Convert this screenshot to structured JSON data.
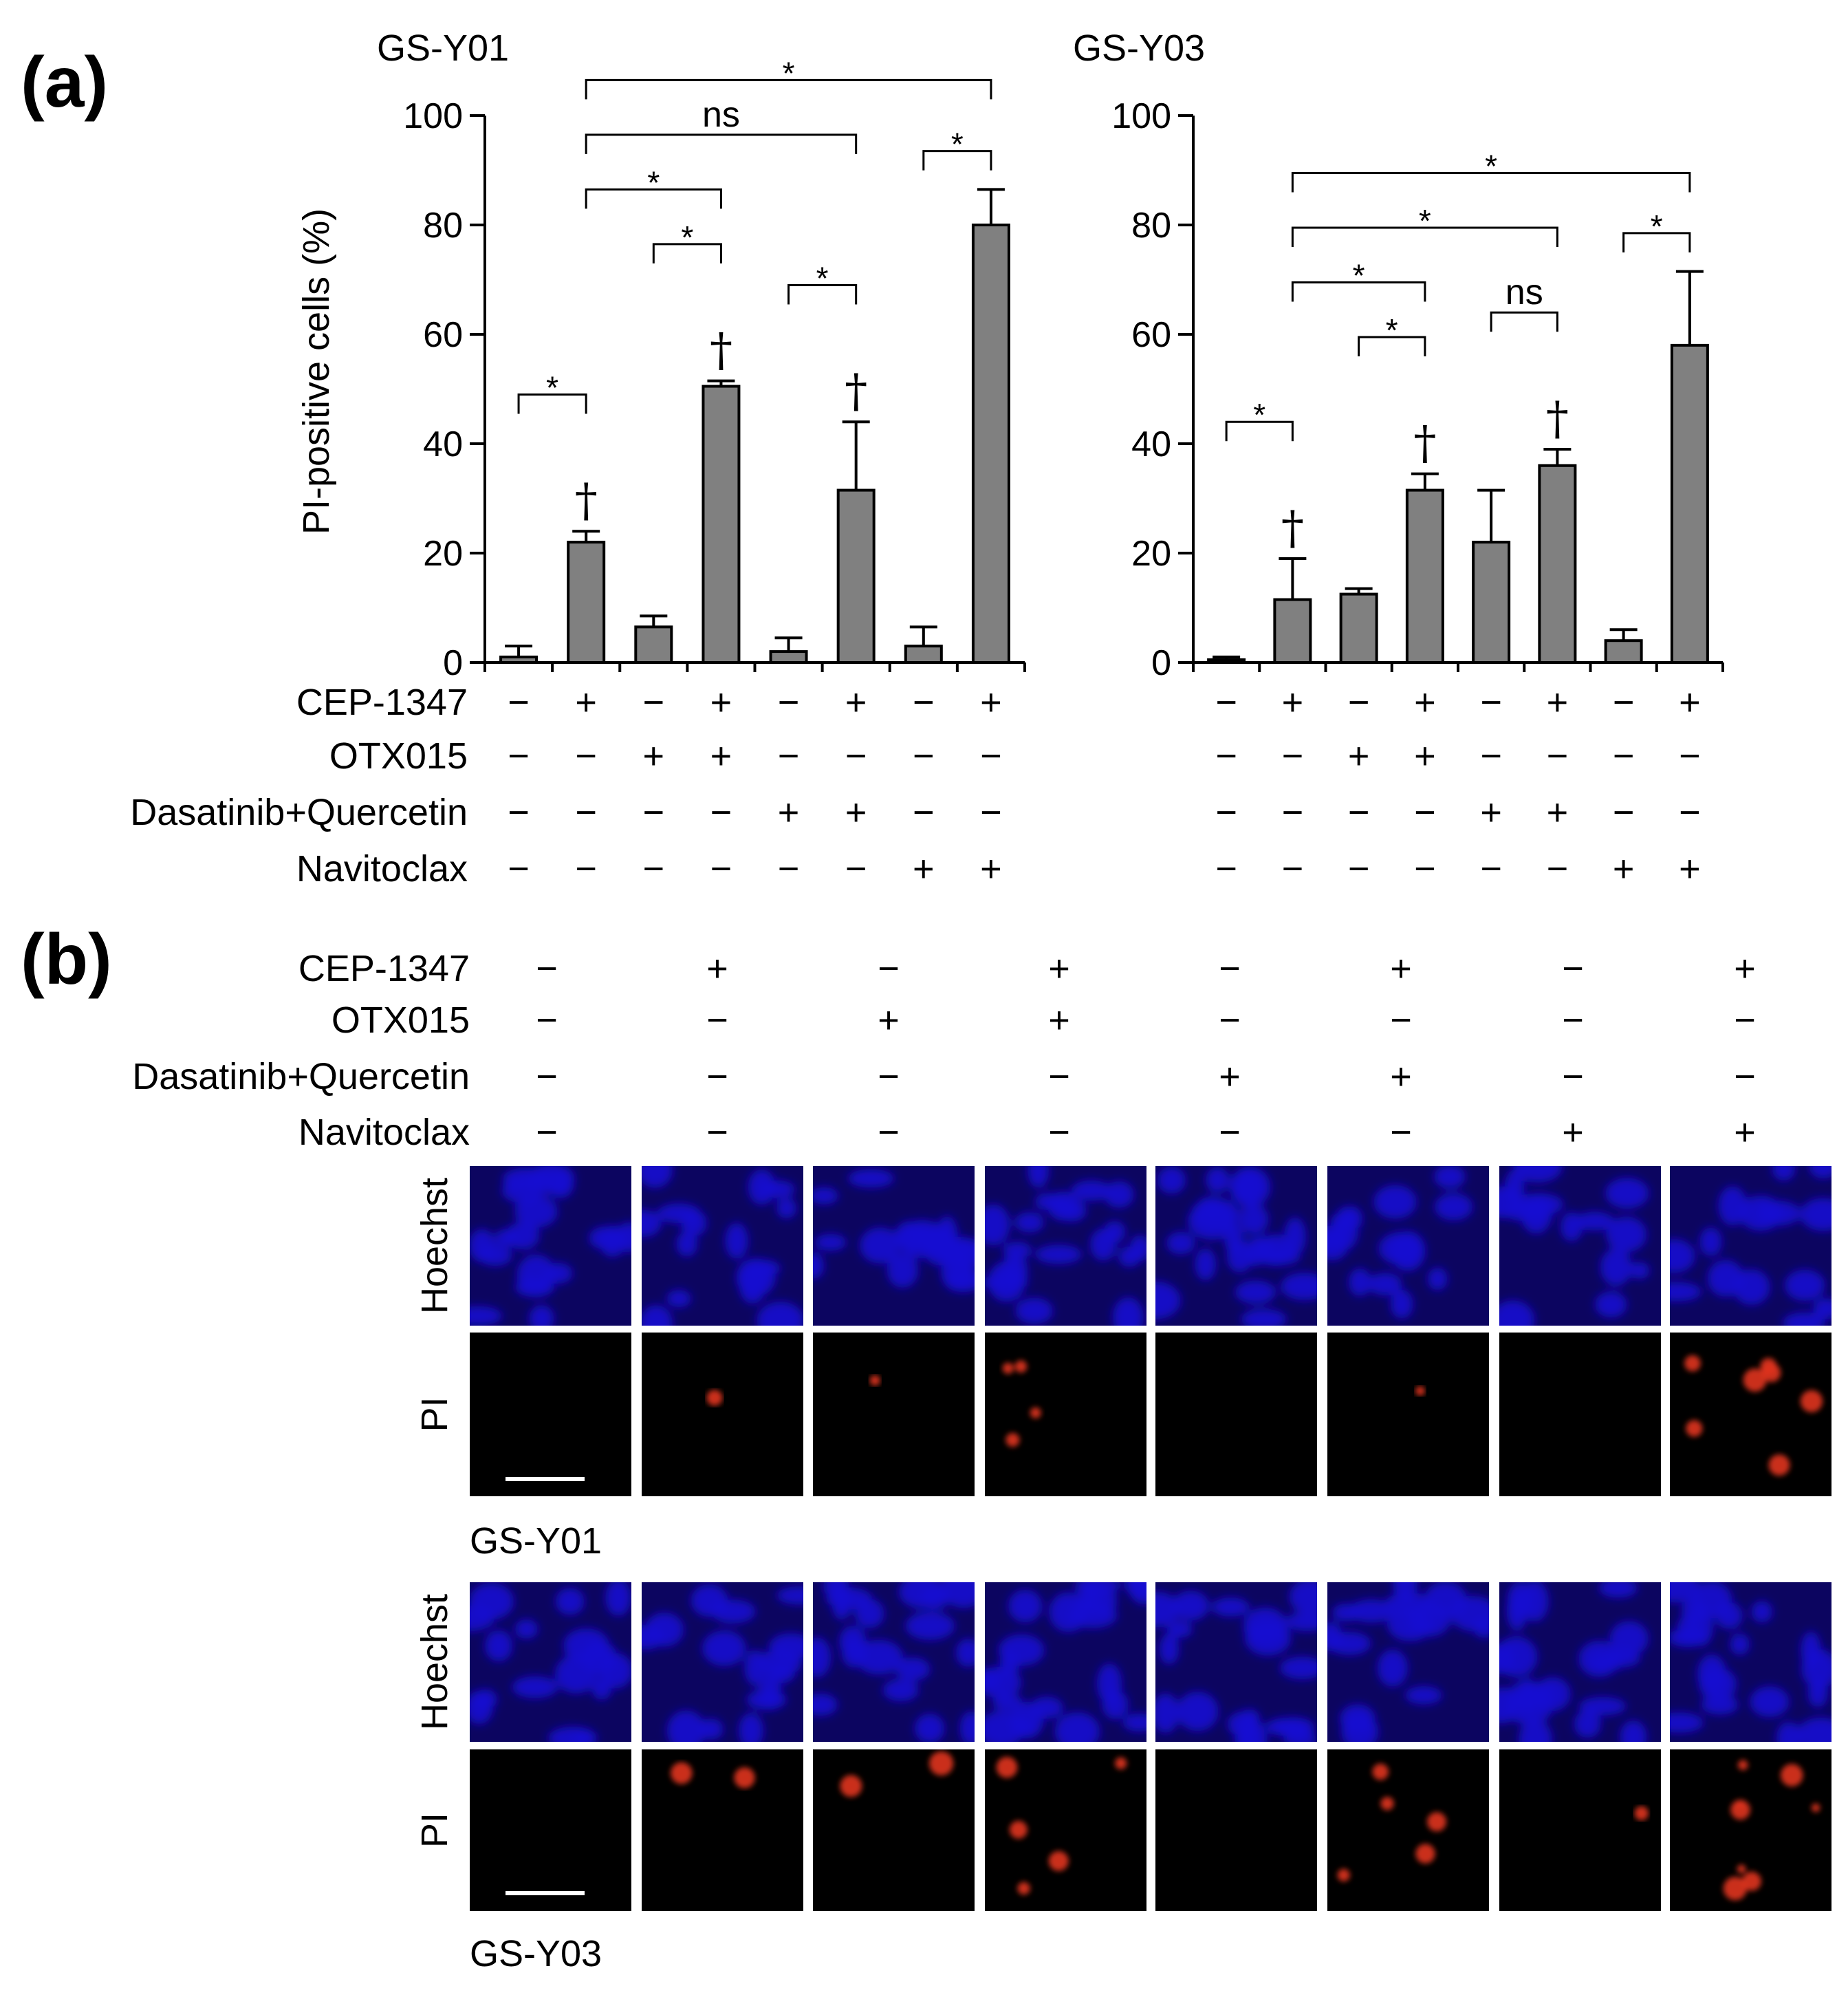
{
  "panel_a_label": "(a)",
  "panel_b_label": "(b)",
  "chart_data": [
    {
      "type": "bar",
      "title": "GS-Y01",
      "ylabel": "PI-positive  cells (%)",
      "ylim": [
        0,
        100
      ],
      "yticks": [
        "0",
        "20",
        "40",
        "60",
        "80",
        "100"
      ],
      "values": [
        1,
        22,
        6.5,
        50.5,
        2,
        31.5,
        3,
        80
      ],
      "errors": [
        2,
        2,
        2,
        1,
        2.5,
        12.5,
        3.5,
        6.5
      ],
      "daggers": [
        false,
        true,
        false,
        true,
        false,
        true,
        false,
        false
      ],
      "brackets": [
        {
          "from": 0,
          "to": 1,
          "label": "*"
        },
        {
          "from": 2,
          "to": 3,
          "label": "*"
        },
        {
          "from": 1,
          "to": 3,
          "label": "*"
        },
        {
          "from": 4,
          "to": 5,
          "label": "*"
        },
        {
          "from": 1,
          "to": 5,
          "label": "ns"
        },
        {
          "from": 6,
          "to": 7,
          "label": "*"
        },
        {
          "from": 1,
          "to": 7,
          "label": "*"
        }
      ]
    },
    {
      "type": "bar",
      "title": "GS-Y03",
      "ylim": [
        0,
        100
      ],
      "yticks": [
        "0",
        "20",
        "40",
        "60",
        "80",
        "100"
      ],
      "values": [
        0.5,
        11.5,
        12.5,
        31.5,
        22,
        36,
        4,
        58
      ],
      "errors": [
        0.5,
        7.5,
        1,
        3,
        9.5,
        3,
        2,
        13.5
      ],
      "daggers": [
        false,
        true,
        false,
        true,
        false,
        true,
        false,
        false
      ],
      "brackets": [
        {
          "from": 0,
          "to": 1,
          "label": "*"
        },
        {
          "from": 2,
          "to": 3,
          "label": "*"
        },
        {
          "from": 1,
          "to": 3,
          "label": "*"
        },
        {
          "from": 4,
          "to": 5,
          "label": "ns"
        },
        {
          "from": 1,
          "to": 5,
          "label": "*"
        },
        {
          "from": 6,
          "to": 7,
          "label": "*"
        },
        {
          "from": 1,
          "to": 7,
          "label": "*"
        }
      ]
    }
  ],
  "treatments": [
    {
      "name": "CEP-1347",
      "signs": [
        "−",
        "+",
        "−",
        "+",
        "−",
        "+",
        "−",
        "+"
      ]
    },
    {
      "name": "OTX015",
      "signs": [
        "−",
        "−",
        "+",
        "+",
        "−",
        "−",
        "−",
        "−"
      ]
    },
    {
      "name": "Dasatinib+Quercetin",
      "signs": [
        "−",
        "−",
        "−",
        "−",
        "+",
        "+",
        "−",
        "−"
      ]
    },
    {
      "name": "Navitoclax",
      "signs": [
        "−",
        "−",
        "−",
        "−",
        "−",
        "−",
        "+",
        "+"
      ]
    }
  ],
  "dagger_symbol": "†",
  "cell_lines": [
    {
      "name": "GS-Y01",
      "rows": [
        "Hoechst",
        "PI"
      ]
    },
    {
      "name": "GS-Y03",
      "rows": [
        "Hoechst",
        "PI"
      ]
    }
  ],
  "colors": {
    "bar": "#808080",
    "hoechst": "#1a0fd0",
    "pi_bg": "#000000",
    "pi_signal": "#e0341c"
  }
}
